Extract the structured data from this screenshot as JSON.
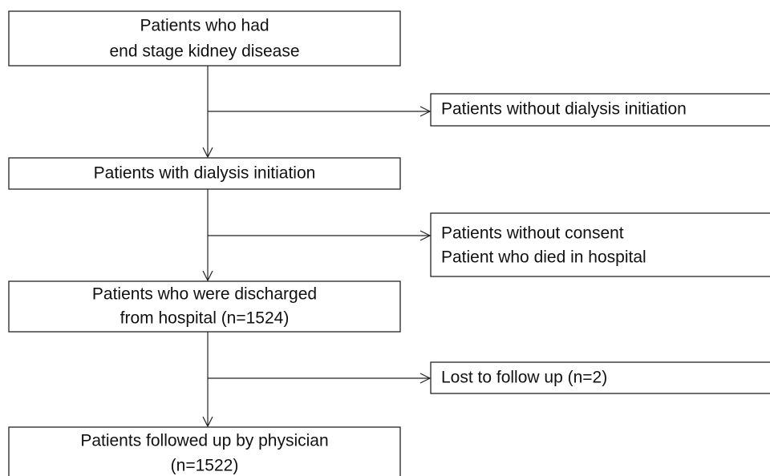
{
  "nodes": [
    {
      "lines": [
        "Patients who had",
        "end stage kidney disease"
      ]
    },
    {
      "lines": [
        "Patients without dialysis initiation"
      ]
    },
    {
      "lines": [
        "Patients with dialysis initiation"
      ]
    },
    {
      "lines": [
        "Patients without consent",
        "Patient who died in hospital"
      ]
    },
    {
      "lines": [
        "Patients who were discharged",
        "from hospital (n=1524)"
      ]
    },
    {
      "lines": [
        "Lost to follow up (n=2)"
      ]
    },
    {
      "lines": [
        "Patients followed up by physician",
        "(n=1522)"
      ]
    }
  ]
}
